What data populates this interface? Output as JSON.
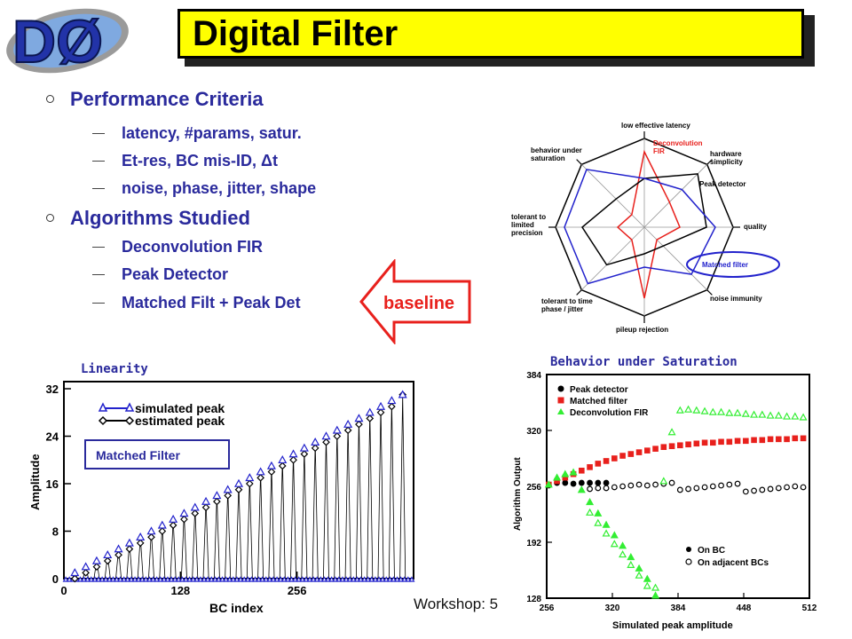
{
  "slide": {
    "logo_text": "DØ",
    "title": "Digital Filter",
    "sections": [
      {
        "heading": "Performance Criteria",
        "items": [
          "latency, #params, satur.",
          "Et-res, BC mis-ID, Δt",
          "noise, phase, jitter, shape"
        ]
      },
      {
        "heading": "Algorithms Studied",
        "items": [
          "Deconvolution FIR",
          "Peak Detector",
          "Matched Filt + Peak Det"
        ]
      }
    ],
    "baseline_label": "baseline",
    "footer": "Workshop: 5"
  },
  "radar": {
    "axes": [
      "low effective latency",
      "hardware simplicity",
      "quality",
      "noise immunity",
      "pileup rejection",
      "tolerant to time phase / jitter",
      "tolerant to limited precision",
      "behavior under saturation"
    ],
    "series": [
      {
        "name": "Deconvolution FIR",
        "color": "#e8201c",
        "values": [
          0.85,
          0.4,
          0.4,
          0.2,
          0.8,
          0.2,
          0.3,
          0.2
        ]
      },
      {
        "name": "Peak detector",
        "color": "#000000",
        "values": [
          0.55,
          0.85,
          0.7,
          0.3,
          0.3,
          0.6,
          0.7,
          0.45
        ]
      },
      {
        "name": "Matched filter",
        "color": "#2222cc",
        "values": [
          0.55,
          0.6,
          0.8,
          0.75,
          0.45,
          0.9,
          0.9,
          0.92
        ]
      }
    ],
    "matched_label": "Matched filter",
    "colors": {
      "deconv": "#e8201c",
      "peak": "#000000",
      "matched": "#2222cc"
    }
  },
  "chart_data": [
    {
      "type": "scatter",
      "title": "Linearity",
      "xlabel": "BC index",
      "ylabel": "Amplitude",
      "xlim": [
        0,
        384
      ],
      "ylim": [
        0,
        32
      ],
      "xticks": [
        "0",
        "128",
        "256"
      ],
      "yticks": [
        "0",
        "8",
        "16",
        "24",
        "32"
      ],
      "annotation": "Matched Filter",
      "series": [
        {
          "name": "simulated peak",
          "marker": "triangle",
          "color": "#2222cc",
          "x": [
            12,
            24,
            36,
            48,
            60,
            72,
            84,
            96,
            108,
            120,
            132,
            144,
            156,
            168,
            180,
            192,
            204,
            216,
            228,
            240,
            252,
            264,
            276,
            288,
            300,
            312,
            324,
            336,
            348,
            360,
            372
          ],
          "y": [
            1,
            2,
            3,
            4,
            5,
            6,
            7,
            8,
            9,
            10,
            11,
            12,
            13,
            14,
            15,
            16,
            17,
            18,
            19,
            20,
            21,
            22,
            23,
            24,
            25,
            26,
            27,
            28,
            29,
            30,
            31
          ]
        },
        {
          "name": "estimated peak",
          "marker": "diamond",
          "color": "#000000",
          "x": [
            12,
            24,
            36,
            48,
            60,
            72,
            84,
            96,
            108,
            120,
            132,
            144,
            156,
            168,
            180,
            192,
            204,
            216,
            228,
            240,
            252,
            264,
            276,
            288,
            300,
            312,
            324,
            336,
            348,
            360,
            372
          ],
          "y": [
            0,
            1,
            2,
            3,
            4,
            5,
            6,
            7,
            8,
            9,
            10,
            11,
            12,
            13,
            14,
            15,
            16,
            17,
            18,
            19,
            20,
            21,
            22,
            23,
            24,
            25,
            26,
            27,
            28,
            29,
            31
          ]
        }
      ]
    },
    {
      "type": "scatter",
      "title": "Behavior under Saturation",
      "xlabel": "Simulated peak amplitude",
      "ylabel": "Algorithm Output",
      "xlim": [
        256,
        512
      ],
      "ylim": [
        128,
        384
      ],
      "xticks": [
        "256",
        "320",
        "384",
        "448",
        "512"
      ],
      "yticks": [
        "128",
        "192",
        "256",
        "320",
        "384"
      ],
      "legend_position": "top-left",
      "legend2": [
        "On BC",
        "On adjacent BCs"
      ],
      "series": [
        {
          "name": "Peak detector",
          "marker": "circle",
          "color": "#000000",
          "filled": true,
          "x": [
            258,
            266,
            274,
            282,
            290,
            298,
            306,
            314
          ],
          "y": [
            257,
            260,
            260,
            259,
            260,
            260,
            260,
            260
          ]
        },
        {
          "name": "Peak detector (adjacent)",
          "marker": "circle",
          "color": "#000000",
          "filled": false,
          "x": [
            298,
            306,
            314,
            322,
            330,
            338,
            346,
            354,
            362,
            370,
            378,
            386,
            394,
            402,
            410,
            418,
            426,
            434,
            442,
            450,
            458,
            466,
            474,
            482,
            490,
            498,
            506
          ],
          "y": [
            253,
            254,
            254,
            255,
            256,
            257,
            258,
            257,
            258,
            259,
            260,
            252,
            253,
            254,
            255,
            256,
            257,
            258,
            259,
            250,
            251,
            252,
            253,
            254,
            255,
            256,
            255
          ]
        },
        {
          "name": "Matched filter",
          "marker": "square",
          "color": "#e8201c",
          "filled": true,
          "x": [
            258,
            266,
            274,
            282,
            290,
            298,
            306,
            314,
            322,
            330,
            338,
            346,
            354,
            362,
            370,
            378,
            386,
            394,
            402,
            410,
            418,
            426,
            434,
            442,
            450,
            458,
            466,
            474,
            482,
            490,
            498,
            506
          ],
          "y": [
            258,
            262,
            266,
            270,
            274,
            278,
            282,
            285,
            288,
            291,
            293,
            295,
            297,
            299,
            301,
            302,
            303,
            304,
            305,
            306,
            306,
            307,
            307,
            308,
            308,
            309,
            309,
            310,
            310,
            310,
            311,
            311
          ]
        },
        {
          "name": "Deconvolution FIR",
          "marker": "triangle",
          "color": "#33ee33",
          "filled": true,
          "x": [
            258,
            266,
            274,
            282,
            290,
            298,
            306,
            314,
            322,
            330,
            338,
            346,
            354,
            362
          ],
          "y": [
            258,
            266,
            270,
            272,
            252,
            238,
            225,
            212,
            200,
            188,
            175,
            162,
            150,
            131
          ]
        },
        {
          "name": "Deconvolution FIR (adjacent)",
          "marker": "triangle",
          "color": "#33ee33",
          "filled": false,
          "x": [
            298,
            306,
            314,
            322,
            330,
            338,
            346,
            354,
            362,
            370,
            378,
            386,
            394,
            402,
            410,
            418,
            426,
            434,
            442,
            450,
            458,
            466,
            474,
            482,
            490,
            498,
            506
          ],
          "y": [
            226,
            214,
            202,
            190,
            178,
            166,
            154,
            142,
            140,
            262,
            318,
            343,
            344,
            343,
            342,
            341,
            341,
            340,
            340,
            339,
            338,
            338,
            337,
            337,
            336,
            336,
            335
          ]
        }
      ]
    }
  ]
}
